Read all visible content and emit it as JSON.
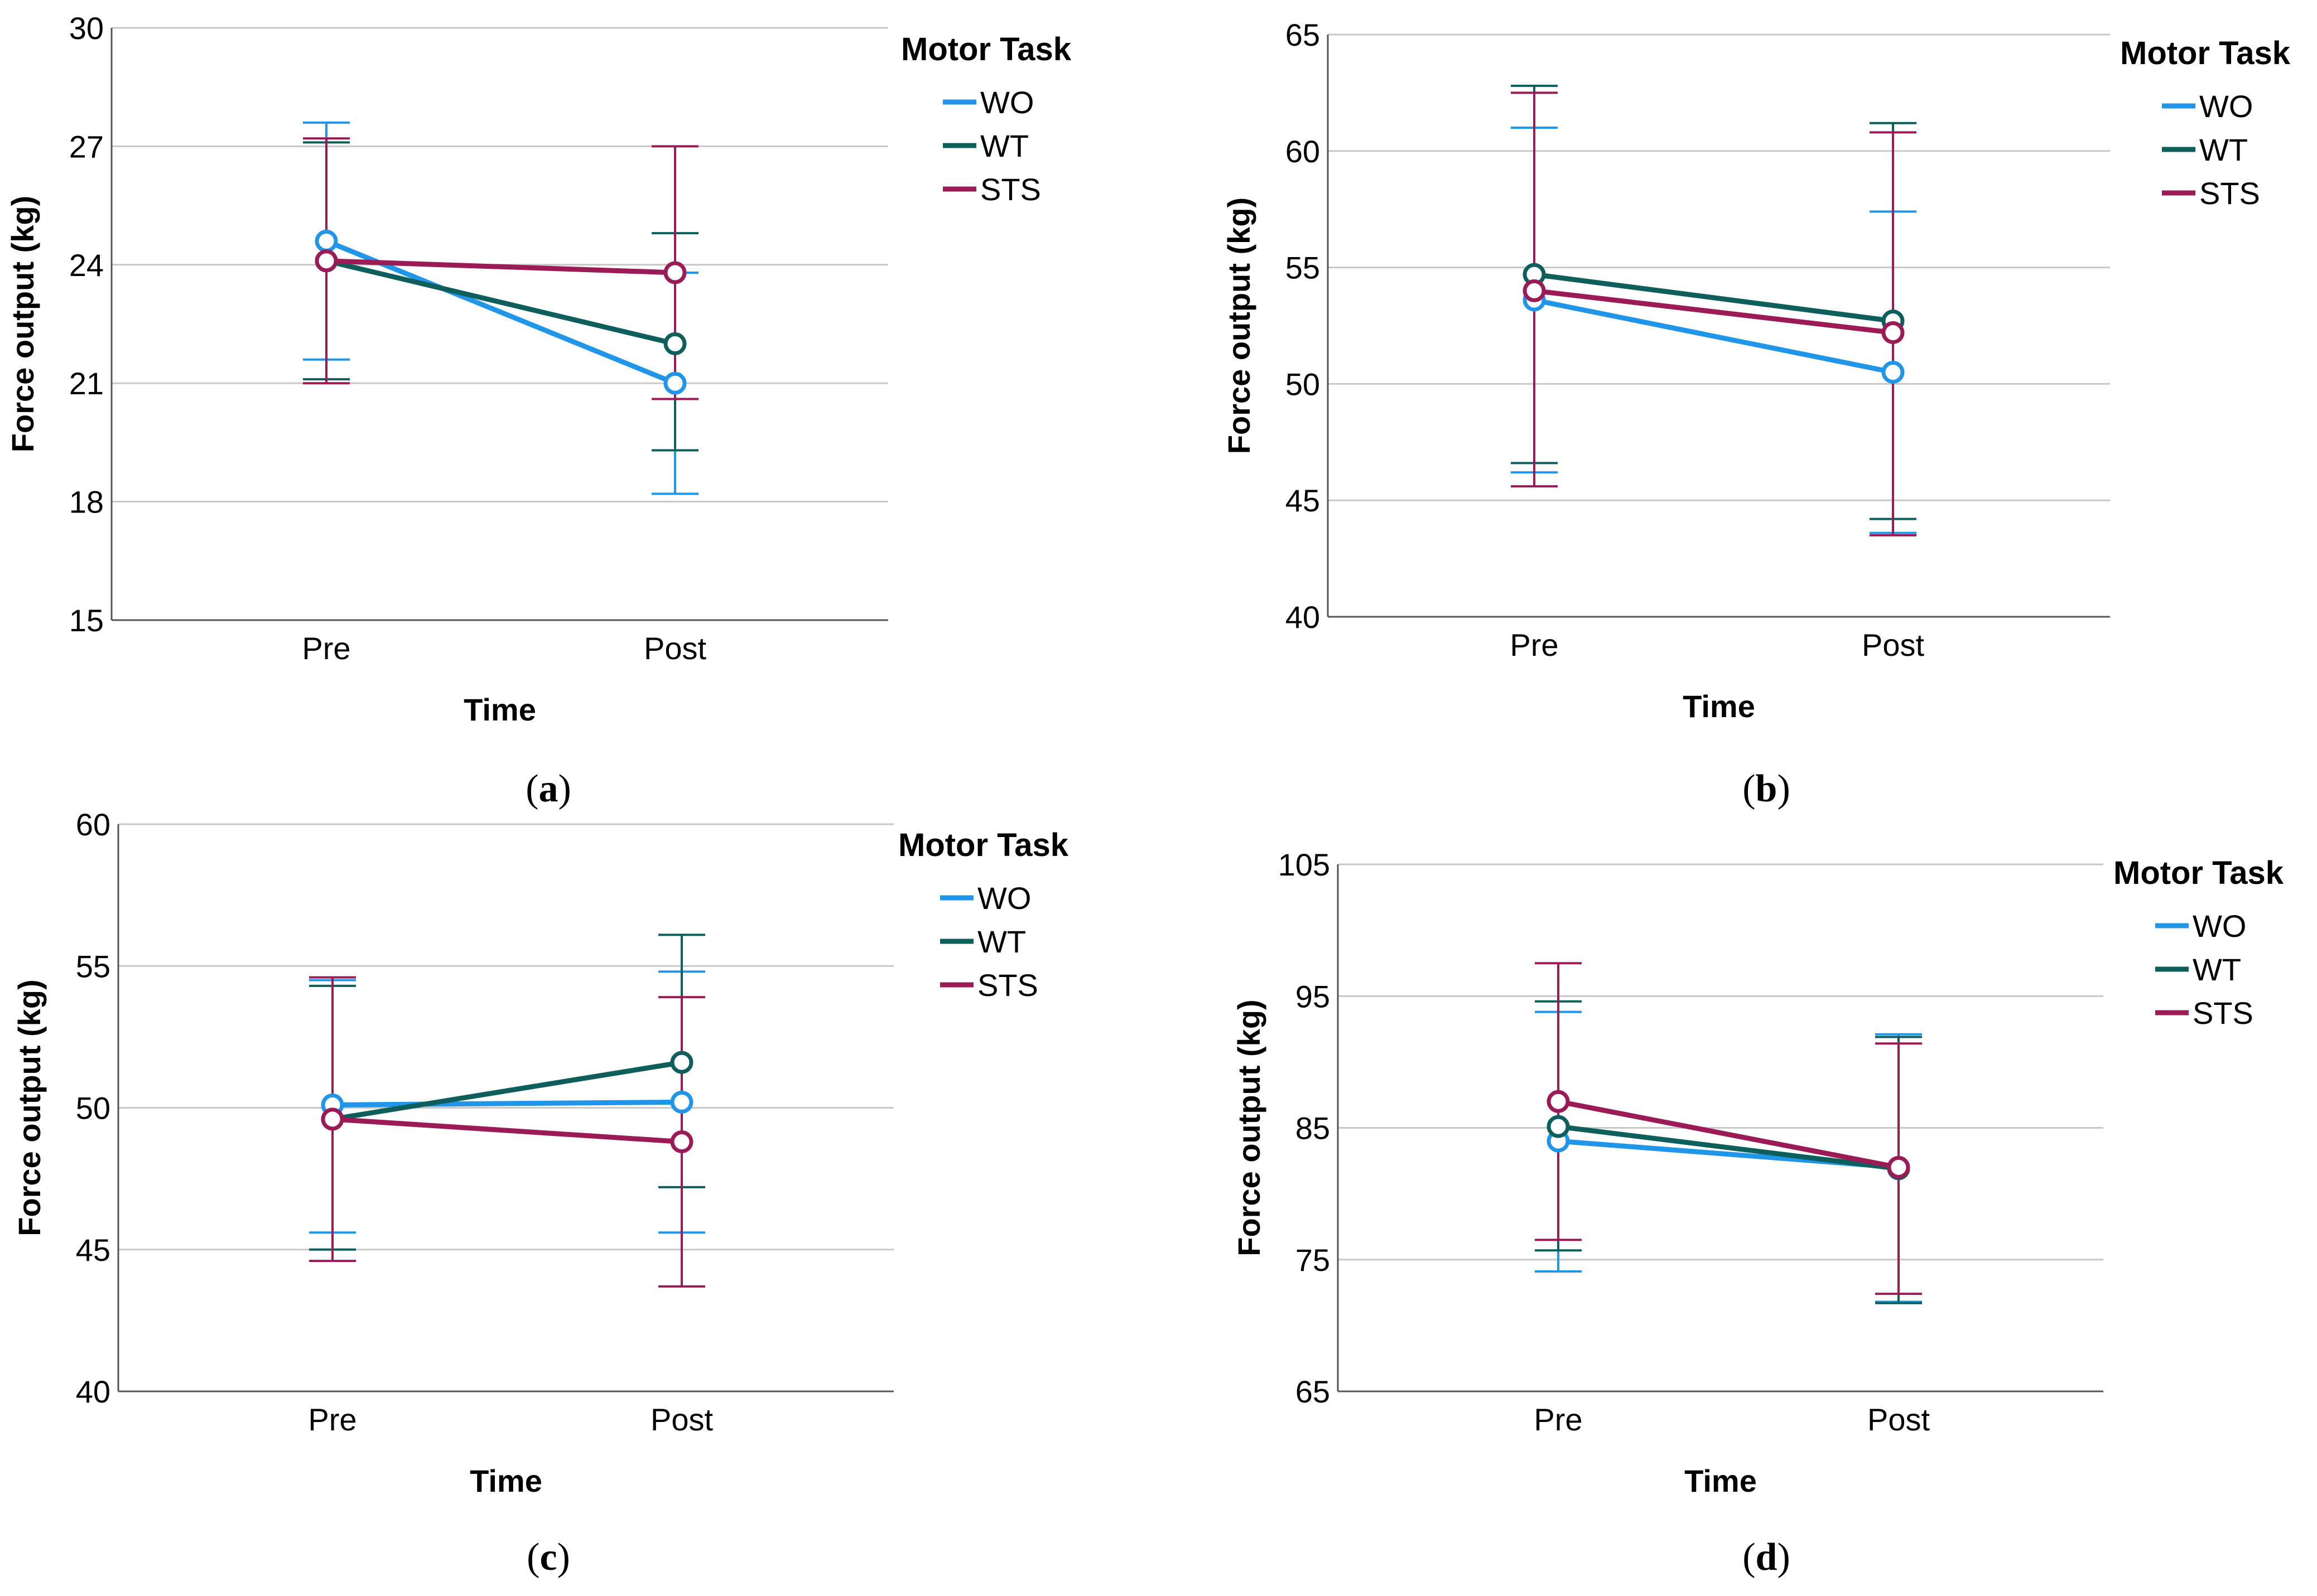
{
  "figure": {
    "panels": [
      {
        "letter": "a"
      },
      {
        "letter": "b"
      },
      {
        "letter": "c"
      },
      {
        "letter": "d"
      }
    ]
  },
  "chart_data": [
    {
      "type": "line",
      "panel": "a",
      "title": "",
      "xlabel": "Time",
      "ylabel": "Force output (kg)",
      "categories": [
        "Pre",
        "Post"
      ],
      "ylim": [
        15,
        30
      ],
      "yticks": [
        15,
        18,
        21,
        24,
        27,
        30
      ],
      "grid": "horizontal",
      "legend_title": "Motor Task",
      "legend_position": "right",
      "error_bars": true,
      "series": [
        {
          "name": "WO",
          "color": "#2196e8",
          "values": [
            24.6,
            21.0
          ],
          "ci_low": [
            21.6,
            18.2
          ],
          "ci_high": [
            27.6,
            23.8
          ]
        },
        {
          "name": "WT",
          "color": "#0e5f5c",
          "values": [
            24.1,
            22.0
          ],
          "ci_low": [
            21.1,
            19.3
          ],
          "ci_high": [
            27.1,
            24.8
          ]
        },
        {
          "name": "STS",
          "color": "#9b1b57",
          "values": [
            24.1,
            23.8
          ],
          "ci_low": [
            21.0,
            20.6
          ],
          "ci_high": [
            27.2,
            27.0
          ]
        }
      ]
    },
    {
      "type": "line",
      "panel": "b",
      "title": "",
      "xlabel": "Time",
      "ylabel": "Force output (kg)",
      "categories": [
        "Pre",
        "Post"
      ],
      "ylim": [
        40,
        65
      ],
      "yticks": [
        40,
        45,
        50,
        55,
        60,
        65
      ],
      "grid": "horizontal",
      "legend_title": "Motor Task",
      "legend_position": "right",
      "error_bars": true,
      "series": [
        {
          "name": "WO",
          "color": "#2196e8",
          "values": [
            53.6,
            50.5
          ],
          "ci_low": [
            46.2,
            43.6
          ],
          "ci_high": [
            61.0,
            57.4
          ]
        },
        {
          "name": "WT",
          "color": "#0e5f5c",
          "values": [
            54.7,
            52.7
          ],
          "ci_low": [
            46.6,
            44.2
          ],
          "ci_high": [
            62.8,
            61.2
          ]
        },
        {
          "name": "STS",
          "color": "#9b1b57",
          "values": [
            54.0,
            52.2
          ],
          "ci_low": [
            45.6,
            43.5
          ],
          "ci_high": [
            62.5,
            60.8
          ]
        }
      ]
    },
    {
      "type": "line",
      "panel": "c",
      "title": "",
      "xlabel": "Time",
      "ylabel": "Force output (kg)",
      "categories": [
        "Pre",
        "Post"
      ],
      "ylim": [
        40,
        60
      ],
      "yticks": [
        40,
        45,
        50,
        55,
        60
      ],
      "grid": "horizontal",
      "legend_title": "Motor Task",
      "legend_position": "right",
      "error_bars": true,
      "series": [
        {
          "name": "WO",
          "color": "#2196e8",
          "values": [
            50.1,
            50.2
          ],
          "ci_low": [
            45.6,
            45.6
          ],
          "ci_high": [
            54.5,
            54.8
          ]
        },
        {
          "name": "WT",
          "color": "#0e5f5c",
          "values": [
            49.6,
            51.6
          ],
          "ci_low": [
            45.0,
            47.2
          ],
          "ci_high": [
            54.3,
            56.1
          ]
        },
        {
          "name": "STS",
          "color": "#9b1b57",
          "values": [
            49.6,
            48.8
          ],
          "ci_low": [
            44.6,
            43.7
          ],
          "ci_high": [
            54.6,
            53.9
          ]
        }
      ]
    },
    {
      "type": "line",
      "panel": "d",
      "title": "",
      "xlabel": "Time",
      "ylabel": "Force output (kg)",
      "categories": [
        "Pre",
        "Post"
      ],
      "ylim": [
        65,
        105
      ],
      "yticks": [
        65,
        75,
        85,
        95,
        105
      ],
      "grid": "horizontal",
      "legend_title": "Motor Task",
      "legend_position": "right",
      "error_bars": true,
      "series": [
        {
          "name": "WO",
          "color": "#2196e8",
          "values": [
            84.0,
            82.0
          ],
          "ci_low": [
            74.1,
            71.8
          ],
          "ci_high": [
            93.8,
            92.1
          ]
        },
        {
          "name": "WT",
          "color": "#0e5f5c",
          "values": [
            85.1,
            81.9
          ],
          "ci_low": [
            75.7,
            71.7
          ],
          "ci_high": [
            94.6,
            91.9
          ]
        },
        {
          "name": "STS",
          "color": "#9b1b57",
          "values": [
            87.0,
            82.0
          ],
          "ci_low": [
            76.5,
            72.4
          ],
          "ci_high": [
            97.5,
            91.4
          ]
        }
      ]
    }
  ]
}
